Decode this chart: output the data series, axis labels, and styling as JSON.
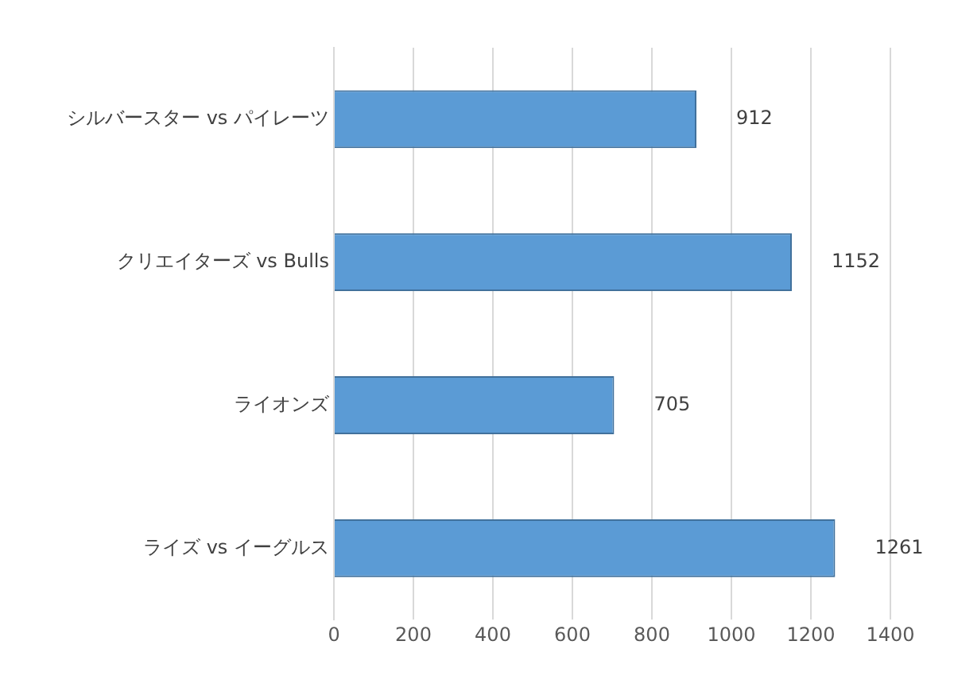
{
  "chart_data": {
    "type": "bar",
    "orientation": "horizontal",
    "categories": [
      "シルバースター vs パイレーツ",
      "クリエイターズ vs Bulls",
      "ライオンズ",
      "ライズ vs イーグルス"
    ],
    "values": [
      912,
      1152,
      705,
      1261
    ],
    "color": "#5b9bd5",
    "xlim": [
      0,
      1400
    ],
    "xticks": [
      0,
      200,
      400,
      600,
      800,
      1000,
      1200,
      1400
    ],
    "grid": "x",
    "legend": false,
    "data_labels": true
  }
}
